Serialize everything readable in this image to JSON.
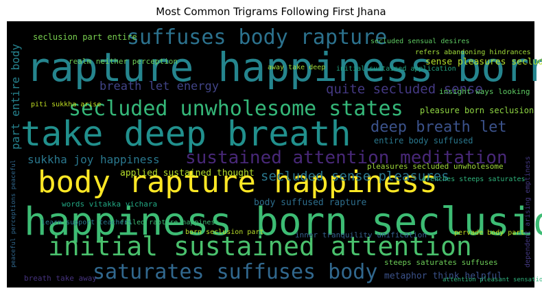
{
  "chart_data": {
    "type": "wordcloud",
    "title": "Most Common Trigrams Following First Jhana",
    "background": "#000000",
    "words": [
      {
        "text": "rapture happiness born",
        "color": "#25858e"
      },
      {
        "text": "happiness born seclusion",
        "color": "#3dbc74"
      },
      {
        "text": "take deep breath",
        "color": "#21908d"
      },
      {
        "text": "body rapture happiness",
        "color": "#fde725"
      },
      {
        "text": "initial sustained attention",
        "color": "#4ac16d"
      },
      {
        "text": "secluded unwholesome states",
        "color": "#35b779"
      },
      {
        "text": "suffuses body rapture",
        "color": "#2c728e"
      },
      {
        "text": "saturates suffuses body",
        "color": "#31688e"
      },
      {
        "text": "sustained attention meditation",
        "color": "#482878"
      },
      {
        "text": "deep breath let",
        "color": "#3b528b"
      },
      {
        "text": "quite secluded sense",
        "color": "#443983"
      },
      {
        "text": "secluded sense pleasures",
        "color": "#2a788e"
      },
      {
        "text": "breath let energy",
        "color": "#414487"
      },
      {
        "text": "sukkha joy happiness",
        "color": "#2a788e"
      },
      {
        "text": "part entire body",
        "color": "#26828e"
      },
      {
        "text": "sense pleasures secluded",
        "color": "#b5de2b"
      },
      {
        "text": "pleasure born seclusion",
        "color": "#90d743"
      },
      {
        "text": "body suffused rapture",
        "color": "#2e6f8e"
      },
      {
        "text": "applied sustained thought",
        "color": "#b5de2b"
      },
      {
        "text": "metaphor think helpful",
        "color": "#3b528b"
      },
      {
        "text": "entire body suffused",
        "color": "#2a788e"
      },
      {
        "text": "pleasures secluded unwholesome",
        "color": "#9fda3a"
      },
      {
        "text": "seclusion part entire",
        "color": "#7ad151"
      },
      {
        "text": "steeps saturates suffuses",
        "color": "#6ece58"
      },
      {
        "text": "refers abandoning hindrances",
        "color": "#a0da39"
      },
      {
        "text": "insight ways looking",
        "color": "#5ec962"
      },
      {
        "text": "inner tranquility unification",
        "color": "#35608d"
      },
      {
        "text": "born seclusion part",
        "color": "#b8de29"
      },
      {
        "text": "words vitakka vichara",
        "color": "#22a884"
      },
      {
        "text": "realm neither perception",
        "color": "#6ece58"
      },
      {
        "text": "drenches steeps saturates",
        "color": "#2fb47c"
      },
      {
        "text": "initial sustained application",
        "color": "#22a884"
      },
      {
        "text": "secluded sensual desires",
        "color": "#5ec962"
      },
      {
        "text": "breath take away",
        "color": "#46337f"
      },
      {
        "text": "piti sukkha arise",
        "color": "#c2df23"
      },
      {
        "text": "filled rapture happiness",
        "color": "#3dbc74"
      },
      {
        "text": "learn support teachers",
        "color": "#2a788e"
      },
      {
        "text": "dependent arising emptiness",
        "color": "#443983"
      },
      {
        "text": "peaceful perceptions peaceful",
        "color": "#31688e"
      },
      {
        "text": "away take deep",
        "color": "#9fda3a"
      },
      {
        "text": "attention pleasant sensation",
        "color": "#2fb47c"
      },
      {
        "text": "pervade body part",
        "color": "#c2df23"
      }
    ]
  }
}
